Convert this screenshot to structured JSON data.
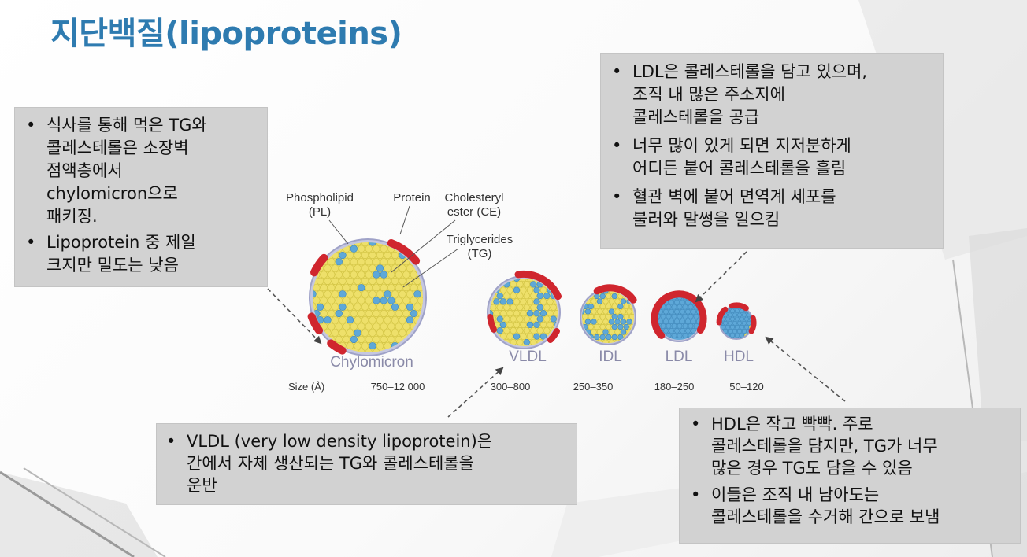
{
  "title": "지단백질(lipoproteins)",
  "left_callout": {
    "bullets": [
      [
        "식사를 통해 먹은 TG와",
        "콜레스테롤은 소장벽",
        "점액층에서",
        "chylomicron으로",
        "패키징."
      ],
      [
        "Lipoprotein 중 제일",
        "크지만 밀도는 낮음"
      ]
    ]
  },
  "ldl_callout": {
    "bullets": [
      [
        "LDL은 콜레스테롤을 담고 있으며,",
        "조직 내 많은 주소지에",
        "콜레스테롤을 공급"
      ],
      [
        "너무 많이 있게 되면 지저분하게",
        "어디든 붙어 콜레스테롤을 흘림"
      ],
      [
        "혈관 벽에 붙어 면역계 세포를",
        "불러와 말썽을 일으킴"
      ]
    ]
  },
  "vldl_callout": {
    "bullets": [
      [
        "VLDL (very low density lipoprotein)은",
        "간에서 자체 생산되는 TG와 콜레스테롤을",
        "운반"
      ]
    ]
  },
  "hdl_callout": {
    "bullets": [
      [
        "HDL은 작고 빡빡. 주로",
        "콜레스테롤을 담지만, TG가 너무",
        "많은 경우 TG도 담을 수 있음"
      ],
      [
        "이들은 조직 내 남아도는",
        "콜레스테롤을 수거해 간으로 보냄"
      ]
    ]
  },
  "diagram": {
    "labels": {
      "phospholipid": "Phospholipid",
      "phospholipid_abbr": "(PL)",
      "protein": "Protein",
      "cholesteryl": "Cholesteryl",
      "cholesteryl_ester": "ester (CE)",
      "triglycerides": "Triglycerides",
      "triglycerides_abbr": "(TG)"
    },
    "size_label": "Size (Å)",
    "particles": [
      {
        "name": "Chylomicron",
        "size": "750–12 000"
      },
      {
        "name": "VLDL",
        "size": "300–800"
      },
      {
        "name": "IDL",
        "size": "250–350"
      },
      {
        "name": "LDL",
        "size": "180–250"
      },
      {
        "name": "HDL",
        "size": "50–120"
      }
    ],
    "colors": {
      "tg": "#eee06a",
      "ce": "#5ea8d8",
      "protein": "#d0262e",
      "shell": "#b7b9d6",
      "particle_label": "#8a8aa8"
    }
  }
}
